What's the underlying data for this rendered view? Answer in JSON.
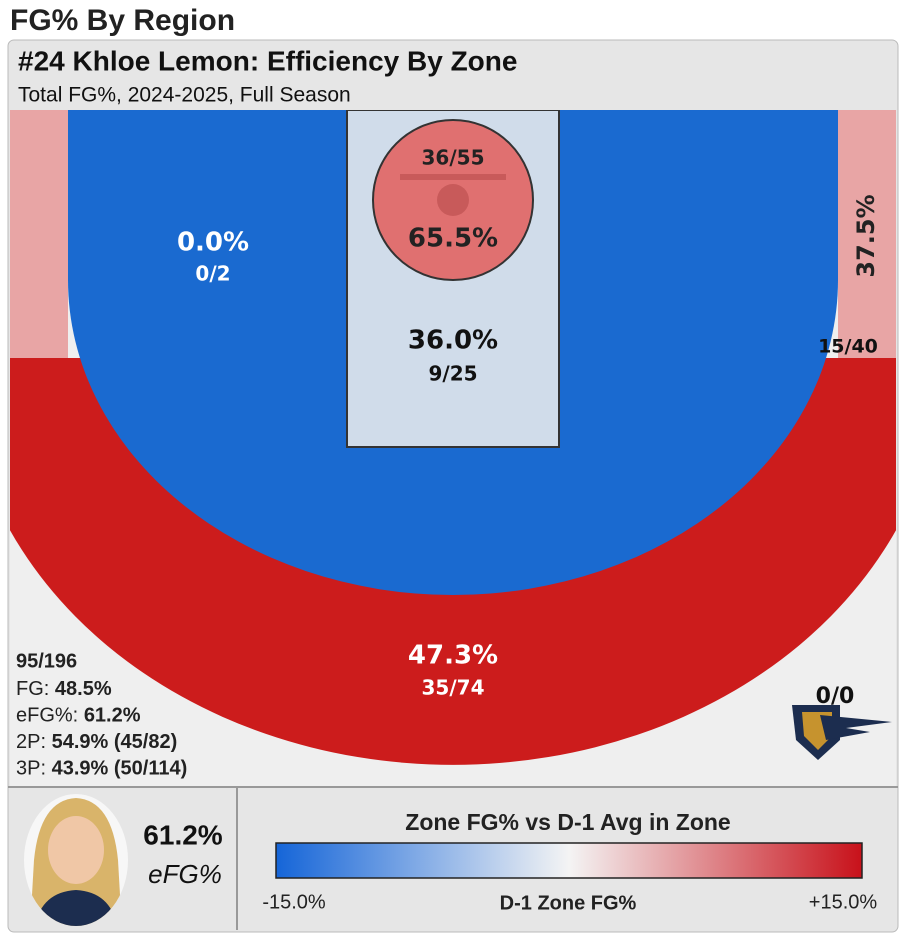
{
  "page_title": "FG% By Region",
  "header": {
    "title": "#24 Khloe Lemon: Efficiency By Zone",
    "subtitle": "Total FG%, 2024-2025, Full Season"
  },
  "zones": {
    "left_midrange": {
      "pct": "0.0%",
      "made_att": "0/2"
    },
    "restricted": {
      "pct": "65.5%",
      "made_att": "36/55"
    },
    "paint": {
      "pct": "36.0%",
      "made_att": "9/25"
    },
    "right_corner_three": {
      "pct": "37.5%",
      "made_att": "15/40"
    },
    "above_break_three": {
      "pct": "47.3%",
      "made_att": "35/74"
    },
    "deep": {
      "made_att": "0/0"
    }
  },
  "summary": {
    "total": "95/196",
    "lines": [
      {
        "label": "FG:",
        "value": "48.5%"
      },
      {
        "label": "eFG%:",
        "value": "61.2%"
      },
      {
        "label": "2P:",
        "value": "54.9% (45/82)"
      },
      {
        "label": "3P:",
        "value": "43.9% (50/114)"
      }
    ]
  },
  "player": {
    "efg": "61.2%",
    "efg_label": "eFG%"
  },
  "legend": {
    "title": "Zone FG% vs D-1 Avg in Zone",
    "min": "-15.0%",
    "axis_label": "D-1 Zone FG%",
    "max": "+15.0%"
  }
}
